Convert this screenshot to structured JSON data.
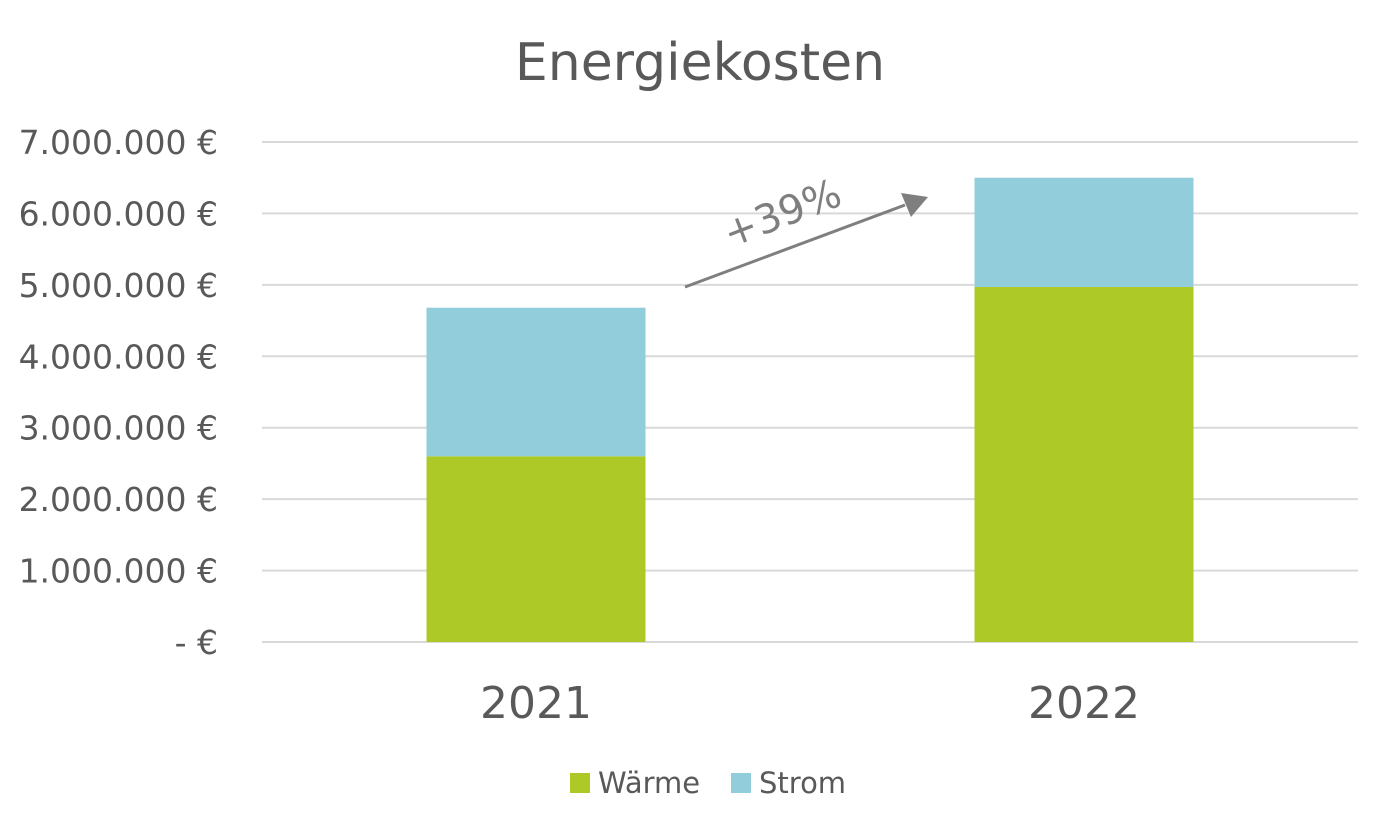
{
  "chart_data": {
    "type": "bar",
    "stacked": true,
    "title": "Energiekosten",
    "xlabel": "",
    "ylabel": "",
    "categories": [
      "2021",
      "2022"
    ],
    "series": [
      {
        "name": "Wärme",
        "values": [
          2600000,
          4970000
        ],
        "color": "#acc927"
      },
      {
        "name": "Strom",
        "values": [
          2080000,
          1530000
        ],
        "color": "#92cddc"
      }
    ],
    "ylim": [
      0,
      7000000
    ],
    "yticks": [
      {
        "value": 0,
        "label": "-   €"
      },
      {
        "value": 1000000,
        "label": "1.000.000 €"
      },
      {
        "value": 2000000,
        "label": "2.000.000 €"
      },
      {
        "value": 3000000,
        "label": "3.000.000 €"
      },
      {
        "value": 4000000,
        "label": "4.000.000 €"
      },
      {
        "value": 5000000,
        "label": "5.000.000 €"
      },
      {
        "value": 6000000,
        "label": "6.000.000 €"
      },
      {
        "value": 7000000,
        "label": "7.000.000 €"
      }
    ],
    "grid": true,
    "legend_position": "bottom",
    "annotation": {
      "text": "+39%",
      "color": "#7f7f7f"
    }
  }
}
